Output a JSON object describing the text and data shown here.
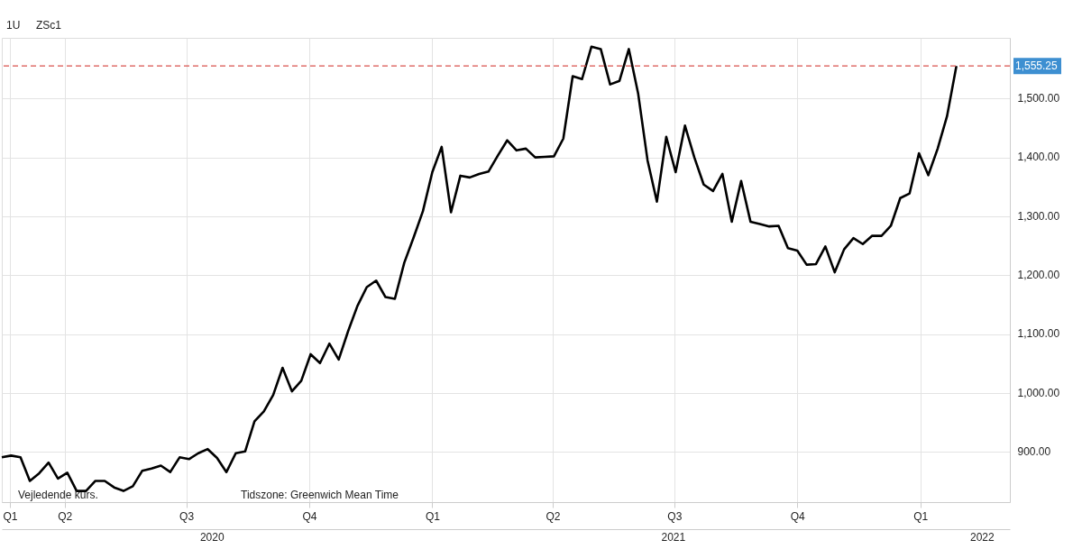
{
  "chart_data": {
    "type": "line",
    "annotations": [
      "1U",
      "ZSc1",
      "Vejledende kurs.",
      "Tidszone: Greenwich Mean Time"
    ],
    "x": [
      "2020-02-14",
      "2020-02-21",
      "2020-02-28",
      "2020-03-06",
      "2020-03-13",
      "2020-03-20",
      "2020-03-27",
      "2020-04-03",
      "2020-04-10",
      "2020-04-17",
      "2020-04-24",
      "2020-05-01",
      "2020-05-08",
      "2020-05-15",
      "2020-05-22",
      "2020-05-29",
      "2020-06-05",
      "2020-06-12",
      "2020-06-19",
      "2020-06-26",
      "2020-07-03",
      "2020-07-10",
      "2020-07-17",
      "2020-07-24",
      "2020-07-31",
      "2020-08-07",
      "2020-08-14",
      "2020-08-21",
      "2020-08-28",
      "2020-09-04",
      "2020-09-11",
      "2020-09-18",
      "2020-09-25",
      "2020-10-02",
      "2020-10-09",
      "2020-10-16",
      "2020-10-23",
      "2020-10-30",
      "2020-11-06",
      "2020-11-13",
      "2020-11-20",
      "2020-11-27",
      "2020-12-04",
      "2020-12-11",
      "2020-12-18",
      "2020-12-25",
      "2021-01-01",
      "2021-01-08",
      "2021-01-15",
      "2021-01-22",
      "2021-01-29",
      "2021-02-05",
      "2021-02-12",
      "2021-02-19",
      "2021-02-26",
      "2021-03-05",
      "2021-03-12",
      "2021-03-19",
      "2021-03-26",
      "2021-04-02",
      "2021-04-09",
      "2021-04-16",
      "2021-04-23",
      "2021-04-30",
      "2021-05-07",
      "2021-05-14",
      "2021-05-21",
      "2021-05-28",
      "2021-06-04",
      "2021-06-11",
      "2021-06-18",
      "2021-06-25",
      "2021-07-02",
      "2021-07-09",
      "2021-07-16",
      "2021-07-23",
      "2021-07-30",
      "2021-08-06",
      "2021-08-13",
      "2021-08-20",
      "2021-08-27",
      "2021-09-03",
      "2021-09-10",
      "2021-09-17",
      "2021-09-24",
      "2021-10-01",
      "2021-10-08",
      "2021-10-15",
      "2021-10-22",
      "2021-10-29",
      "2021-11-05",
      "2021-11-12",
      "2021-11-19",
      "2021-11-26",
      "2021-12-03",
      "2021-12-10",
      "2021-12-17",
      "2021-12-24",
      "2021-12-31",
      "2022-01-07",
      "2022-01-14",
      "2022-01-21",
      "2022-01-28"
    ],
    "series": [
      {
        "color": "#000000",
        "values": [
          891,
          894,
          891,
          851,
          864,
          882,
          855,
          865,
          834,
          834,
          851,
          851,
          840,
          834,
          842,
          868,
          872,
          877,
          866,
          891,
          888,
          898,
          905,
          890,
          866,
          898,
          901,
          952,
          969,
          997,
          1043,
          1003,
          1021,
          1066,
          1051,
          1084,
          1057,
          1105,
          1148,
          1180,
          1191,
          1163,
          1160,
          1221,
          1264,
          1309,
          1375,
          1418,
          1307,
          1369,
          1366,
          1372,
          1376,
          1403,
          1429,
          1412,
          1415,
          1400,
          1401,
          1402,
          1432,
          1538,
          1533,
          1588,
          1584,
          1524,
          1530,
          1584,
          1508,
          1395,
          1325,
          1435,
          1375,
          1454,
          1400,
          1354,
          1343,
          1372,
          1291,
          1360,
          1291,
          1287,
          1283,
          1284,
          1246,
          1242,
          1218,
          1219,
          1249,
          1205,
          1244,
          1263,
          1253,
          1267,
          1267,
          1284,
          1331,
          1339,
          1407,
          1370,
          1415,
          1470,
          1555.25
        ]
      }
    ],
    "xlim": [
      "2020-02-14",
      "2022-03-09"
    ],
    "xticks": [
      {
        "value": "2020-02-20",
        "label": "Q1"
      },
      {
        "value": "2020-04-01",
        "label": "Q2"
      },
      {
        "value": "2020-07-01",
        "label": "Q3"
      },
      {
        "value": "2020-10-01",
        "label": "Q4"
      },
      {
        "value": "2021-01-01",
        "label": "Q1"
      },
      {
        "value": "2021-04-01",
        "label": "Q2"
      },
      {
        "value": "2021-07-01",
        "label": "Q3"
      },
      {
        "value": "2021-10-01",
        "label": "Q4"
      },
      {
        "value": "2022-01-01",
        "label": "Q1"
      }
    ],
    "x2lim": [
      "2020-02-14",
      "2022-03-09"
    ],
    "x2ticks": [
      {
        "value": "2020-07-20",
        "label": "2020"
      },
      {
        "value": "2021-06-30",
        "label": "2021"
      },
      {
        "value": "2022-02-16",
        "label": "2022"
      }
    ],
    "ylim": [
      815,
      1603
    ],
    "yticks": [
      {
        "value": 900,
        "label": "900.00"
      },
      {
        "value": 1000,
        "label": "1,000.00"
      },
      {
        "value": 1100,
        "label": "1,100.00"
      },
      {
        "value": 1200,
        "label": "1,200.00"
      },
      {
        "value": 1300,
        "label": "1,300.00"
      },
      {
        "value": 1400,
        "label": "1,400.00"
      },
      {
        "value": 1500,
        "label": "1,500.00"
      }
    ],
    "ref_lines": [
      {
        "axis": "y",
        "value": 1555.25,
        "label": "1,555.25",
        "color": "#d9534f",
        "line_style": "dashed"
      }
    ],
    "grid": true,
    "marker": "none",
    "line_style": "solid"
  }
}
